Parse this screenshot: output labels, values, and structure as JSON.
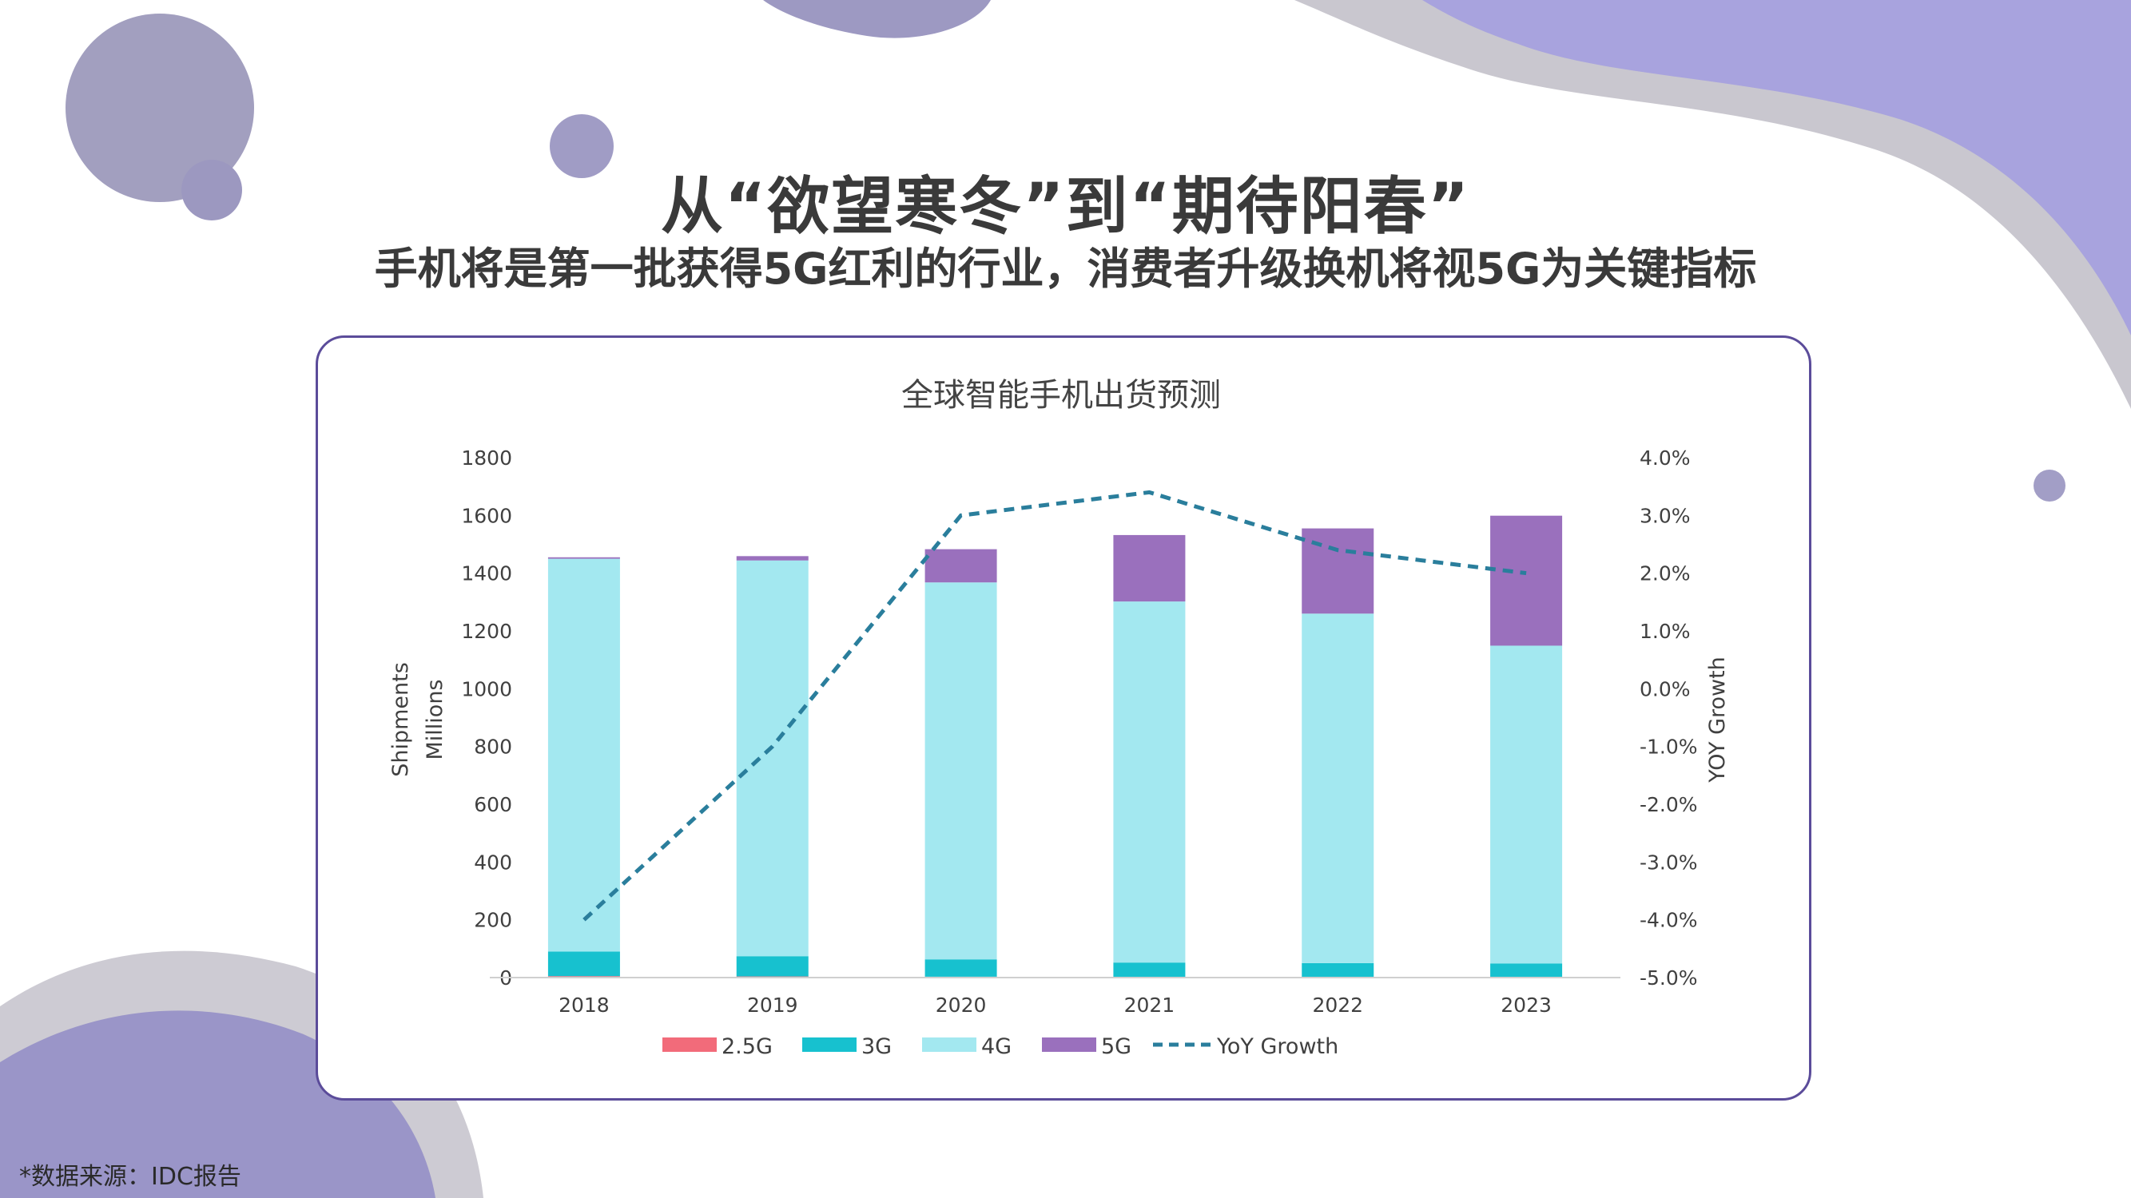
{
  "header": {
    "title": "从“欲望寒冬”到“期待阳春”",
    "subtitle": "手机将是第一批获得5G红利的行业，消费者升级换机将视5G为关键指标"
  },
  "source_note": "*数据来源：IDC报告",
  "colors": {
    "s2_5g": "#f26b7a",
    "s3g": "#17c1cf",
    "s4g": "#a3e8f0",
    "s5g": "#9a70bd",
    "yoy": "#2a7e9c",
    "panel_border": "#5b4c9a",
    "decor_purple": "#9b95c4",
    "decor_grey": "#c9c7cf"
  },
  "chart_data": {
    "type": "bar",
    "stacked": true,
    "title": "全球智能手机出货预测",
    "categories": [
      "2018",
      "2019",
      "2020",
      "2021",
      "2022",
      "2023"
    ],
    "series": [
      {
        "name": "2.5G",
        "values": [
          5,
          4,
          3,
          2,
          2,
          1
        ]
      },
      {
        "name": "3G",
        "values": [
          85,
          70,
          60,
          50,
          48,
          48
        ]
      },
      {
        "name": "4G",
        "values": [
          1360,
          1370,
          1305,
          1250,
          1210,
          1100
        ]
      },
      {
        "name": "5G",
        "values": [
          5,
          15,
          115,
          230,
          295,
          450
        ]
      }
    ],
    "line_series": {
      "name": "YoY Growth",
      "values": [
        -4.0,
        -1.0,
        3.0,
        3.4,
        2.4,
        2.0
      ]
    },
    "ylabel": "Shipments\nMillions",
    "ylabel_lines": [
      "Shipments",
      "Millions"
    ],
    "y2label": "YOY Growth",
    "ylim": [
      0,
      1800
    ],
    "y_ticks": [
      "1800",
      "1600",
      "1400",
      "1200",
      "1000",
      "800",
      "600",
      "400",
      "200",
      "0"
    ],
    "y2lim": [
      -5.0,
      4.0
    ],
    "y2_ticks": [
      "4.0%",
      "3.0%",
      "2.0%",
      "1.0%",
      "0.0%",
      "-1.0%",
      "-2.0%",
      "-3.0%",
      "-4.0%",
      "-5.0%"
    ],
    "legend_position": "bottom",
    "legend": [
      "2.5G",
      "3G",
      "4G",
      "5G",
      "YoY Growth"
    ]
  }
}
